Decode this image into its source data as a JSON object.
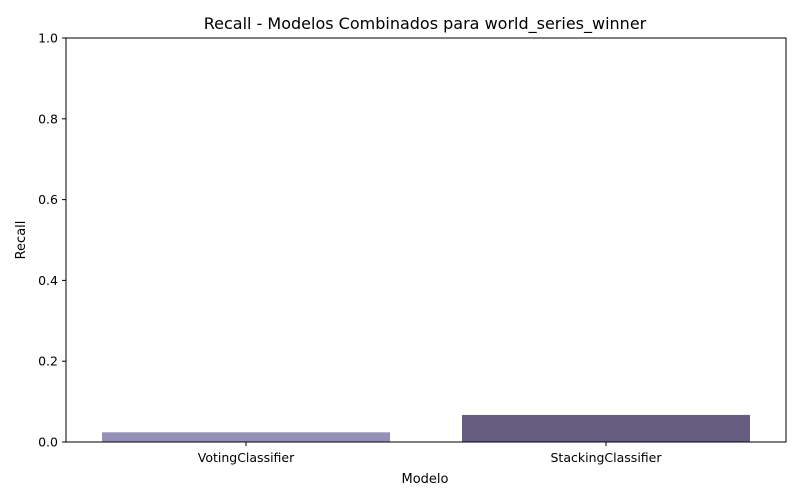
{
  "chart_data": {
    "type": "bar",
    "title": "Recall - Modelos Combinados para world_series_winner",
    "xlabel": "Modelo",
    "ylabel": "Recall",
    "categories": [
      "VotingClassifier",
      "StackingClassifier"
    ],
    "values": [
      0.024,
      0.067
    ],
    "colors": [
      "#9590b7",
      "#665e82"
    ],
    "ylim": [
      0,
      1.0
    ],
    "yticks": [
      "0.0",
      "0.2",
      "0.4",
      "0.6",
      "0.8",
      "1.0"
    ],
    "grid": false,
    "legend": "none"
  }
}
